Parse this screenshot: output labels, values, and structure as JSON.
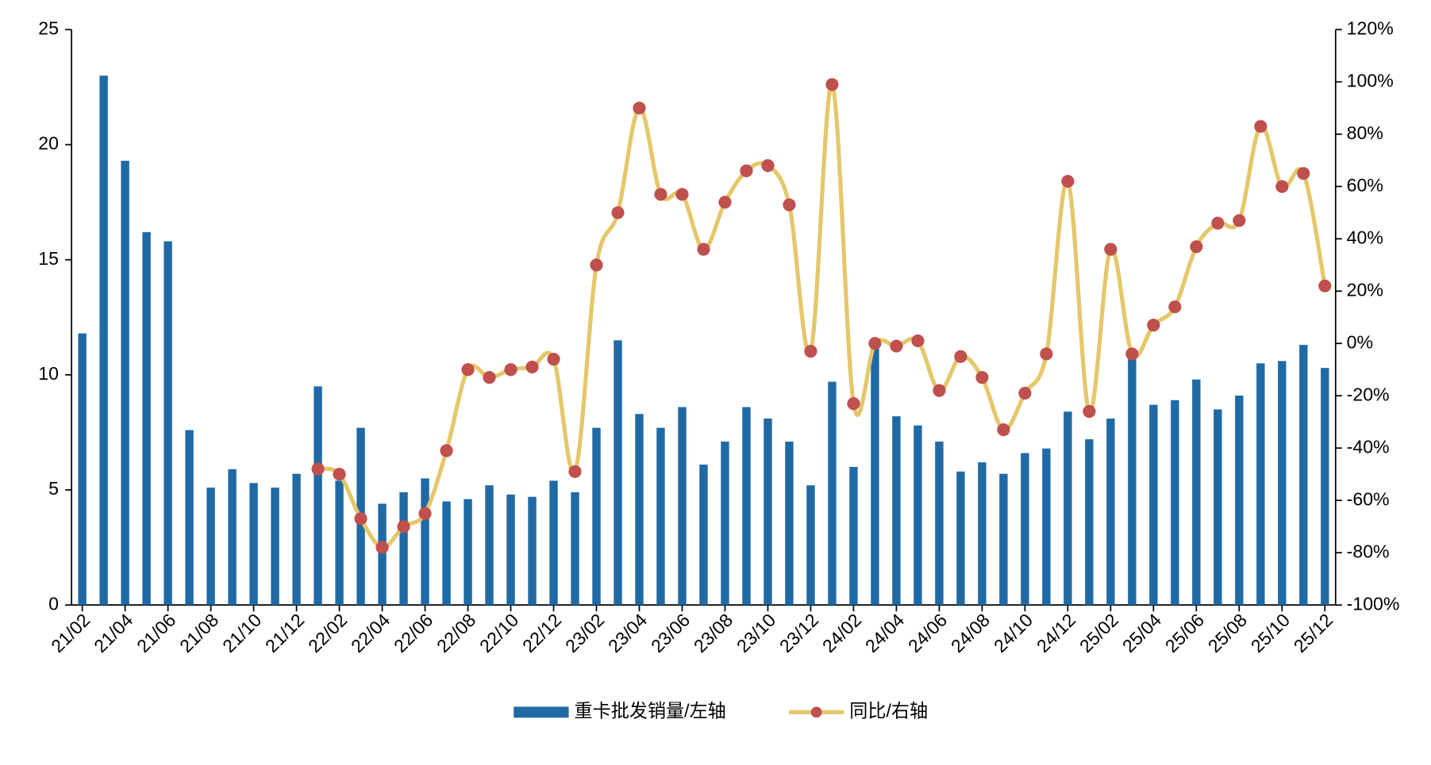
{
  "chart_data": {
    "type": "bar_line",
    "categories": [
      "21/02",
      null,
      "21/04",
      null,
      "21/06",
      null,
      "21/08",
      null,
      "21/10",
      null,
      "21/12",
      null,
      "22/02",
      null,
      "22/04",
      null,
      "22/06",
      null,
      "22/08",
      null,
      "22/10",
      null,
      "22/12",
      null,
      "23/02",
      null,
      "23/04",
      null,
      "23/06",
      null,
      "23/08",
      null,
      "23/10",
      null,
      "23/12",
      null,
      "24/02",
      null,
      "24/04",
      null,
      "24/06",
      null,
      "24/08",
      null,
      "24/10",
      null,
      "24/12",
      null,
      "25/02",
      null,
      "25/04",
      null,
      "25/06",
      null,
      "25/08",
      null,
      "25/10",
      null,
      "25/12"
    ],
    "series": [
      {
        "name": "重卡批发销量/左轴",
        "type": "bar",
        "color": "#1f6aa5",
        "axis": "y",
        "values": [
          11.8,
          23.0,
          19.3,
          16.2,
          15.8,
          7.6,
          5.1,
          5.9,
          5.3,
          5.1,
          5.7,
          9.5,
          5.4,
          7.7,
          4.4,
          4.9,
          5.5,
          4.5,
          4.6,
          5.2,
          4.8,
          4.7,
          5.4,
          4.9,
          7.7,
          11.5,
          8.3,
          7.7,
          8.6,
          6.1,
          7.1,
          8.6,
          8.1,
          7.1,
          5.2,
          9.7,
          6.0,
          11.3,
          8.2,
          7.8,
          7.1,
          5.8,
          6.2,
          5.7,
          6.6,
          6.8,
          8.4,
          7.2,
          8.1,
          10.8,
          8.7,
          8.9,
          9.8,
          8.5,
          9.1,
          10.5,
          10.6,
          11.3,
          10.3
        ]
      },
      {
        "name": "同比/右轴",
        "type": "line",
        "color": "#e5c76b",
        "marker_color": "#c0504d",
        "axis": "y2",
        "values": [
          null,
          null,
          null,
          null,
          null,
          null,
          null,
          null,
          null,
          null,
          null,
          -48,
          -50,
          -67,
          -78,
          -70,
          -65,
          -41,
          -10,
          -13,
          -10,
          -9,
          -6,
          -49,
          30,
          50,
          90,
          57,
          57,
          36,
          54,
          66,
          68,
          53,
          -3,
          99,
          -23,
          0,
          -1,
          1,
          -18,
          -5,
          -13,
          -33,
          -19,
          -4,
          62,
          -26,
          36,
          -4,
          7,
          14,
          37,
          46,
          47,
          83,
          60,
          65,
          22
        ]
      }
    ],
    "ylim": [
      0,
      25
    ],
    "yticks": [
      0,
      5,
      10,
      15,
      20,
      25
    ],
    "y2lim": [
      -100,
      120
    ],
    "y2ticks": [
      {
        "value": -100,
        "label": "-100%"
      },
      {
        "value": -80,
        "label": "-80%"
      },
      {
        "value": -60,
        "label": "-60%"
      },
      {
        "value": -40,
        "label": "-40%"
      },
      {
        "value": -20,
        "label": "-20%"
      },
      {
        "value": 0,
        "label": "0%"
      },
      {
        "value": 20,
        "label": "20%"
      },
      {
        "value": 40,
        "label": "40%"
      },
      {
        "value": 60,
        "label": "60%"
      },
      {
        "value": 80,
        "label": "80%"
      },
      {
        "value": 100,
        "label": "100%"
      },
      {
        "value": 120,
        "label": "120%"
      }
    ],
    "legend": "bottom"
  }
}
